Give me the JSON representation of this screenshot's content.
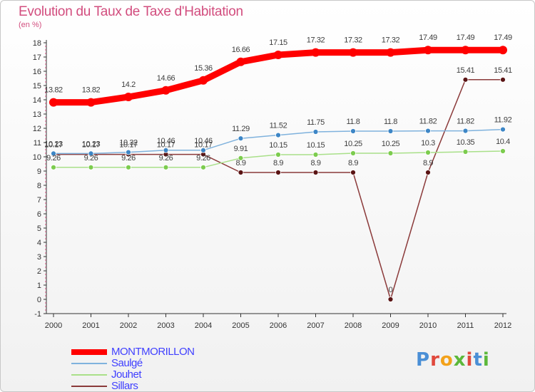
{
  "title": "Evolution du Taux de Taxe d'Habitation",
  "unit_label": "(en %)",
  "logo_text": "Proxiti",
  "logo_colors": [
    "#4a8fd6",
    "#e0483c",
    "#f3a21b",
    "#5cb83a",
    "#e0483c",
    "#4a8fd6",
    "#5cb83a"
  ],
  "chart_data": {
    "type": "line",
    "title": "Evolution du Taux de Taxe d'Habitation",
    "ylabel": "(en %)",
    "xlabel": "",
    "ylim": [
      -1,
      18
    ],
    "yticks": [
      -1,
      0,
      1,
      2,
      3,
      4,
      5,
      6,
      7,
      8,
      9,
      10,
      11,
      12,
      13,
      14,
      15,
      16,
      17,
      18
    ],
    "grid": false,
    "legend_position": "bottom-left",
    "x": [
      "2000",
      "2001",
      "2002",
      "2003",
      "2004",
      "2005",
      "2006",
      "2007",
      "2008",
      "2009",
      "2010",
      "2011",
      "2012"
    ],
    "series": [
      {
        "name": "MONTMORILLON",
        "color": "#ff0000",
        "marker_color": "#ff0000",
        "label_color": "#3f3f3f",
        "values": [
          13.82,
          13.82,
          14.2,
          14.66,
          15.36,
          16.66,
          17.15,
          17.32,
          17.32,
          17.32,
          17.49,
          17.49,
          17.49
        ],
        "labels": [
          "13.82",
          "13.82",
          "14.2",
          "14.66",
          "15.36",
          "16.66",
          "17.15",
          "17.32",
          "17.32",
          "17.32",
          "17.49",
          "17.49",
          "17.49"
        ]
      },
      {
        "name": "Saulgé",
        "color": "#7fb2dd",
        "marker_color": "#3d86c6",
        "label_color": "#3f3f3f",
        "values": [
          10.23,
          10.23,
          10.32,
          10.46,
          10.46,
          11.29,
          11.52,
          11.75,
          11.8,
          11.8,
          11.82,
          11.82,
          11.92
        ],
        "labels": [
          "10.23",
          "10.23",
          "10.32",
          "10.46",
          "10.46",
          "11.29",
          "11.52",
          "11.75",
          "11.8",
          "11.8",
          "11.82",
          "11.82",
          "11.92"
        ]
      },
      {
        "name": "Jouhet",
        "color": "#a9e089",
        "marker_color": "#7ccc4e",
        "label_color": "#3f3f3f",
        "values": [
          9.26,
          9.26,
          9.26,
          9.26,
          9.26,
          9.91,
          10.15,
          10.15,
          10.25,
          10.25,
          10.3,
          10.35,
          10.4
        ],
        "labels": [
          "9.26",
          "9.26",
          "9.26",
          "9.26",
          "9.26",
          "9.91",
          "10.15",
          "10.15",
          "10.25",
          "10.25",
          "10.3",
          "10.35",
          "10.4"
        ]
      },
      {
        "name": "Sillars",
        "color": "#8b3a3a",
        "marker_color": "#5a1414",
        "label_color": "#3f3f3f",
        "values": [
          10.17,
          10.17,
          10.17,
          10.17,
          10.17,
          8.9,
          8.9,
          8.9,
          8.9,
          0,
          8.9,
          15.41,
          15.41
        ],
        "labels": [
          "10.17",
          "10.17",
          "10.17",
          "10.17",
          "10.17",
          "8.9",
          "8.9",
          "8.9",
          "8.9",
          "0",
          "8.9",
          "15.41",
          "15.41"
        ]
      }
    ]
  },
  "legend": [
    {
      "label": "MONTMORILLON",
      "color": "#ff0000",
      "text_color": "#4040ff",
      "thick": true
    },
    {
      "label": "Saulgé",
      "color": "#7fb2dd",
      "text_color": "#4040ff",
      "thick": false
    },
    {
      "label": "Jouhet",
      "color": "#a9e089",
      "text_color": "#4040ff",
      "thick": false
    },
    {
      "label": "Sillars",
      "color": "#8b3a3a",
      "text_color": "#4040ff",
      "thick": false
    }
  ]
}
